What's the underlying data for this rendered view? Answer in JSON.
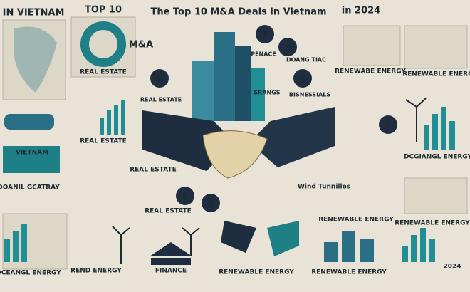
{
  "header": {
    "title": "The Top 10 M&A Deals in Vietnam",
    "top_left": "IN VIETNAM",
    "top_label": "TOP 10",
    "year": "in 2024"
  },
  "symbol": "$",
  "labels": [
    "REAL ESTATE",
    "PENACE",
    "REAL ESTATE",
    "DOANG TIAC",
    "SRANGS",
    "BISNESSIALS",
    "RENEWABE ENERGY",
    "RENEWABLE ENERGY",
    "VIETNAM",
    "REAL ESTATE",
    "REAL ESTATE",
    "DOANIL GCATRAY",
    "REAL ESTATE",
    "Wind Tunnilles",
    "RENEWABLE ENERGY",
    "DCGIANGL ENERGY",
    "RENEWABLE ENERGY",
    "DCEANGL ENERGY",
    "REND ENERGY",
    "FINANCE",
    "RENEWABLE ENERGY",
    "RENEWABLE ENERGY",
    "2024",
    "M&A"
  ]
}
